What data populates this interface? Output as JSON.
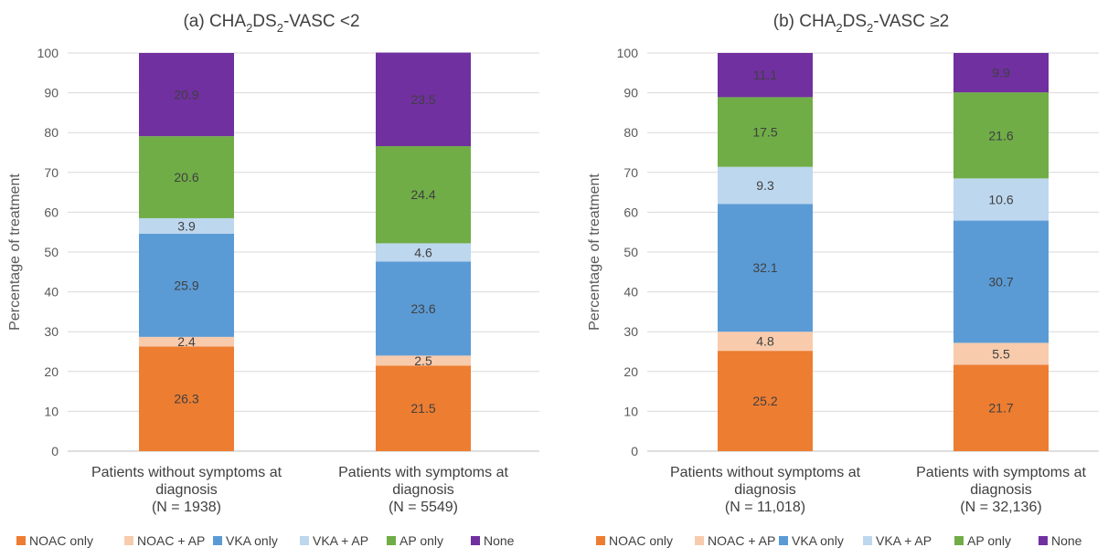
{
  "series_names": [
    "NOAC only",
    "NOAC + AP",
    "VKA only",
    "VKA + AP",
    "AP only",
    "None"
  ],
  "series_colors": [
    "#ed7d31",
    "#f8cbad",
    "#5b9bd5",
    "#bdd7ee",
    "#70ad47",
    "#7030a0"
  ],
  "chart_data": [
    {
      "type": "bar",
      "stacked": true,
      "title_parts": [
        "(a) CHA",
        "2",
        "DS",
        "2",
        "-VASC <2"
      ],
      "ylabel": "Percentage of treatment",
      "ylim": [
        0,
        100
      ],
      "yticks": [
        "0",
        "10",
        "20",
        "30",
        "40",
        "50",
        "60",
        "70",
        "80",
        "90",
        "100"
      ],
      "grid": true,
      "legend_position": "bottom",
      "categories": [
        [
          "Patients without symptoms at",
          "diagnosis",
          "(N = 1938)"
        ],
        [
          "Patients with symptoms at",
          "diagnosis",
          "(N = 5549)"
        ]
      ],
      "series": [
        {
          "name": "NOAC only",
          "values": [
            26.3,
            21.5
          ],
          "labels": [
            "26.3",
            "21.5"
          ]
        },
        {
          "name": "NOAC + AP",
          "values": [
            2.4,
            2.5
          ],
          "labels": [
            "2.4",
            "2.5"
          ]
        },
        {
          "name": "VKA only",
          "values": [
            25.9,
            23.6
          ],
          "labels": [
            "25.9",
            "23.6"
          ]
        },
        {
          "name": "VKA + AP",
          "values": [
            3.9,
            4.6
          ],
          "labels": [
            "3.9",
            "4.6"
          ]
        },
        {
          "name": "AP only",
          "values": [
            20.6,
            24.4
          ],
          "labels": [
            "20.6",
            "24.4"
          ]
        },
        {
          "name": "None",
          "values": [
            20.9,
            23.5
          ],
          "labels": [
            "20.9",
            "23.5"
          ]
        }
      ]
    },
    {
      "type": "bar",
      "stacked": true,
      "title_parts": [
        "(b) CHA",
        "2",
        "DS",
        "2",
        "-VASC ≥2"
      ],
      "ylabel": "Percentage of treatment",
      "ylim": [
        0,
        100
      ],
      "yticks": [
        "0",
        "10",
        "20",
        "30",
        "40",
        "50",
        "60",
        "70",
        "80",
        "90",
        "100"
      ],
      "grid": true,
      "legend_position": "bottom",
      "categories": [
        [
          "Patients without symptoms at",
          "diagnosis",
          "(N = 11,018)"
        ],
        [
          "Patients with symptoms at",
          "diagnosis",
          "(N = 32,136)"
        ]
      ],
      "series": [
        {
          "name": "NOAC only",
          "values": [
            25.2,
            21.7
          ],
          "labels": [
            "25.2",
            "21.7"
          ]
        },
        {
          "name": "NOAC + AP",
          "values": [
            4.8,
            5.5
          ],
          "labels": [
            "4.8",
            "5.5"
          ]
        },
        {
          "name": "VKA only",
          "values": [
            32.1,
            30.7
          ],
          "labels": [
            "32.1",
            "30.7"
          ]
        },
        {
          "name": "VKA + AP",
          "values": [
            9.3,
            10.6
          ],
          "labels": [
            "9.3",
            "10.6"
          ]
        },
        {
          "name": "AP only",
          "values": [
            17.5,
            21.6
          ],
          "labels": [
            "17.5",
            "21.6"
          ]
        },
        {
          "name": "None",
          "values": [
            11.1,
            9.9
          ],
          "labels": [
            "11.1",
            "9.9"
          ]
        }
      ]
    }
  ]
}
